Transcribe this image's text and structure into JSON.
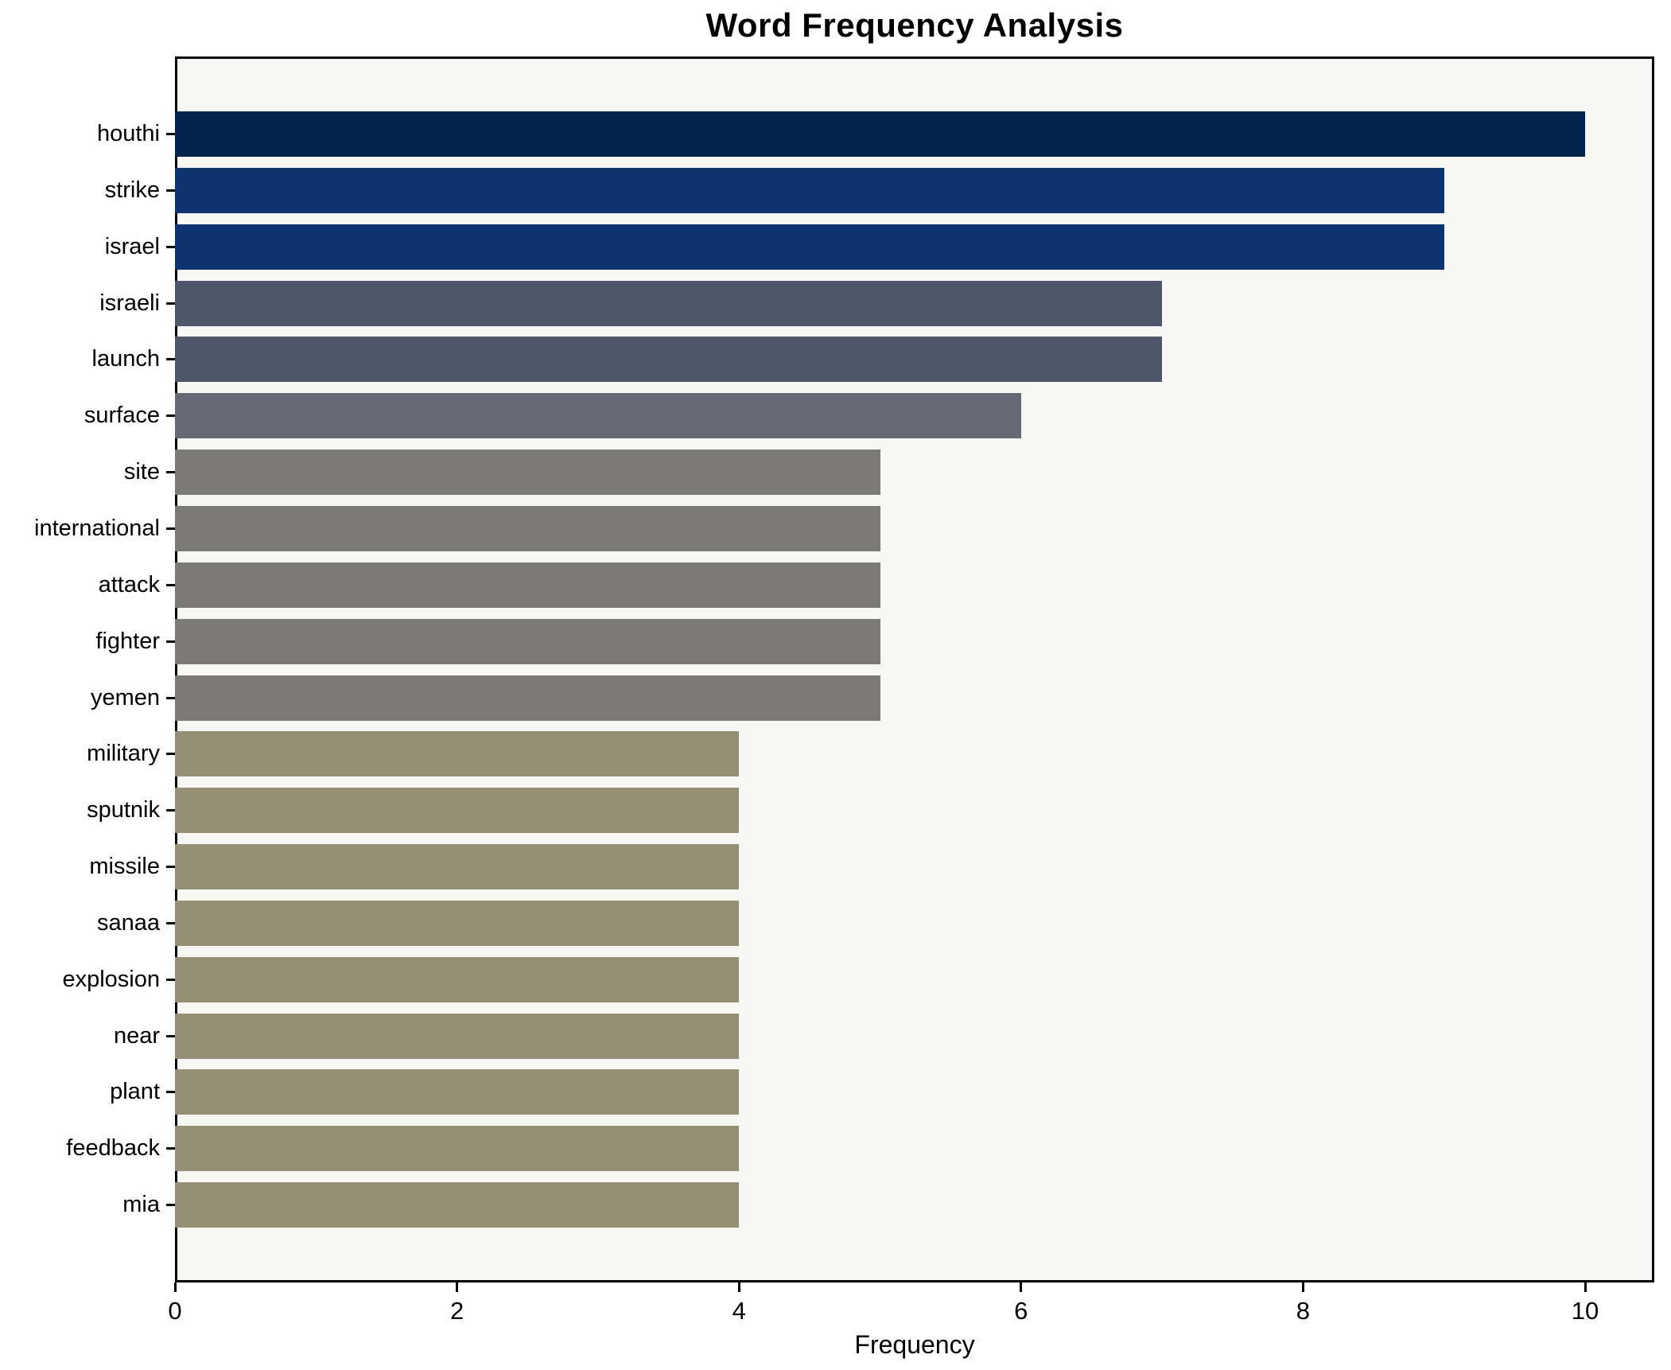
{
  "title": "Word Frequency Analysis",
  "x_axis_label": "Frequency",
  "chart_data": {
    "type": "bar",
    "orientation": "horizontal",
    "title": "Word Frequency Analysis",
    "xlabel": "Frequency",
    "ylabel": "",
    "xlim": [
      0,
      10.5
    ],
    "x_ticks": [
      0,
      2,
      4,
      6,
      8,
      10
    ],
    "grid": false,
    "legend": "none",
    "plot_background": "#f7f7f6",
    "figure_background": "#ffffff",
    "categories": [
      "houthi",
      "strike",
      "israel",
      "israeli",
      "launch",
      "surface",
      "site",
      "international",
      "attack",
      "fighter",
      "yemen",
      "military",
      "sputnik",
      "missile",
      "sanaa",
      "explosion",
      "near",
      "plant",
      "feedback",
      "mia"
    ],
    "values": [
      10,
      9,
      9,
      7,
      7,
      6,
      5,
      5,
      5,
      5,
      5,
      4,
      4,
      4,
      4,
      4,
      4,
      4,
      4,
      4
    ],
    "bar_colors": [
      "#02234c",
      "#0e346f",
      "#0e346f",
      "#4e566c",
      "#4e566c",
      "#666a74",
      "#7b7a77",
      "#7b7a77",
      "#7b7a77",
      "#7b7a77",
      "#7b7a77",
      "#948f75",
      "#948f75",
      "#948f75",
      "#948f75",
      "#948f75",
      "#948f75",
      "#948f75",
      "#948f75",
      "#948f75"
    ]
  }
}
